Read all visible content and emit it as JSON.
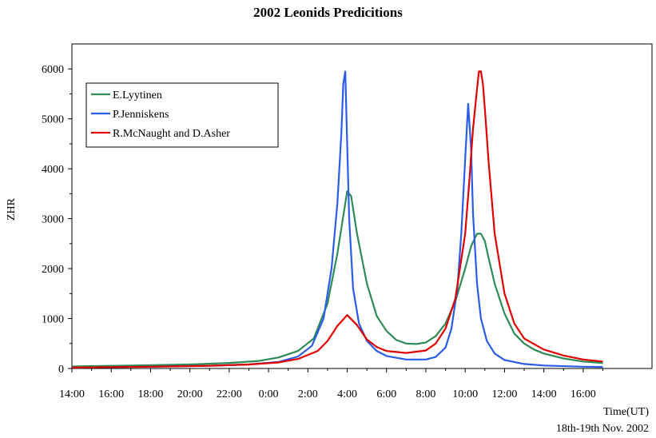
{
  "chart_data": {
    "type": "line",
    "title": "2002 Leonids Predicitions",
    "xlabel": "Time(UT)",
    "xlabel_sub": "18th-19th Nov. 2002",
    "ylabel": "ZHR",
    "ylim": [
      0,
      6500
    ],
    "y_ticks": [
      0,
      1000,
      2000,
      3000,
      4000,
      5000,
      6000
    ],
    "xlim": [
      14,
      43.5
    ],
    "x_ticks": [
      {
        "v": 14,
        "label": "14:00"
      },
      {
        "v": 16,
        "label": "16:00"
      },
      {
        "v": 18,
        "label": "18:00"
      },
      {
        "v": 20,
        "label": "20:00"
      },
      {
        "v": 22,
        "label": "22:00"
      },
      {
        "v": 24,
        "label": "0:00"
      },
      {
        "v": 26,
        "label": "2:00"
      },
      {
        "v": 28,
        "label": "4:00"
      },
      {
        "v": 30,
        "label": "6:00"
      },
      {
        "v": 32,
        "label": "8:00"
      },
      {
        "v": 34,
        "label": "10:00"
      },
      {
        "v": 36,
        "label": "12:00"
      },
      {
        "v": 38,
        "label": "14:00"
      },
      {
        "v": 40,
        "label": "16:00"
      }
    ],
    "legend_position": "top-left",
    "series": [
      {
        "name": "E.Lyytinen",
        "color": "#2e8b57",
        "x": [
          14,
          17,
          20,
          22,
          23.5,
          24.5,
          25.5,
          26.3,
          27,
          27.5,
          27.8,
          28.0,
          28.2,
          28.5,
          29,
          29.5,
          30,
          30.5,
          31,
          31.5,
          32,
          32.5,
          33,
          33.5,
          34,
          34.3,
          34.6,
          34.8,
          35,
          35.2,
          35.5,
          36,
          36.5,
          37,
          37.5,
          38,
          39,
          40,
          41
        ],
        "y": [
          40,
          60,
          80,
          110,
          150,
          220,
          350,
          600,
          1300,
          2300,
          3050,
          3550,
          3450,
          2700,
          1700,
          1050,
          750,
          570,
          500,
          490,
          520,
          650,
          900,
          1350,
          2000,
          2450,
          2700,
          2700,
          2550,
          2200,
          1700,
          1100,
          700,
          500,
          380,
          300,
          200,
          140,
          110
        ]
      },
      {
        "name": "P.Jenniskens",
        "color": "#2a5ce8",
        "x": [
          14,
          18,
          21,
          23,
          24.5,
          25.5,
          26.2,
          26.8,
          27.2,
          27.5,
          27.7,
          27.8,
          27.9,
          28.0,
          28.1,
          28.3,
          28.6,
          29,
          29.5,
          30,
          31,
          32,
          32.5,
          33,
          33.3,
          33.6,
          33.8,
          34.0,
          34.15,
          34.3,
          34.4,
          34.6,
          34.8,
          35.1,
          35.5,
          36,
          37,
          38,
          40,
          41
        ],
        "y": [
          20,
          35,
          55,
          80,
          130,
          240,
          450,
          1000,
          2000,
          3300,
          4700,
          5700,
          5950,
          4500,
          3000,
          1600,
          900,
          550,
          350,
          250,
          180,
          180,
          230,
          420,
          800,
          1600,
          2700,
          4200,
          5300,
          4400,
          3100,
          1700,
          1000,
          550,
          300,
          170,
          90,
          60,
          35,
          30
        ]
      },
      {
        "name": "R.McNaught and D.Asher",
        "color": "#e00000",
        "x": [
          14,
          18,
          21,
          23,
          24.5,
          25.5,
          26.5,
          27,
          27.5,
          28.0,
          28.5,
          29,
          29.5,
          30,
          31,
          32,
          32.5,
          33,
          33.5,
          34,
          34.2,
          34.4,
          34.6,
          34.7,
          34.8,
          34.9,
          35.0,
          35.2,
          35.5,
          36,
          36.5,
          37,
          38,
          39,
          40,
          41
        ],
        "y": [
          20,
          35,
          55,
          80,
          120,
          190,
          350,
          550,
          850,
          1070,
          870,
          580,
          430,
          350,
          310,
          360,
          500,
          800,
          1400,
          2700,
          3700,
          4800,
          5600,
          5950,
          5950,
          5700,
          5200,
          4100,
          2700,
          1500,
          900,
          600,
          380,
          260,
          180,
          140
        ]
      }
    ]
  }
}
